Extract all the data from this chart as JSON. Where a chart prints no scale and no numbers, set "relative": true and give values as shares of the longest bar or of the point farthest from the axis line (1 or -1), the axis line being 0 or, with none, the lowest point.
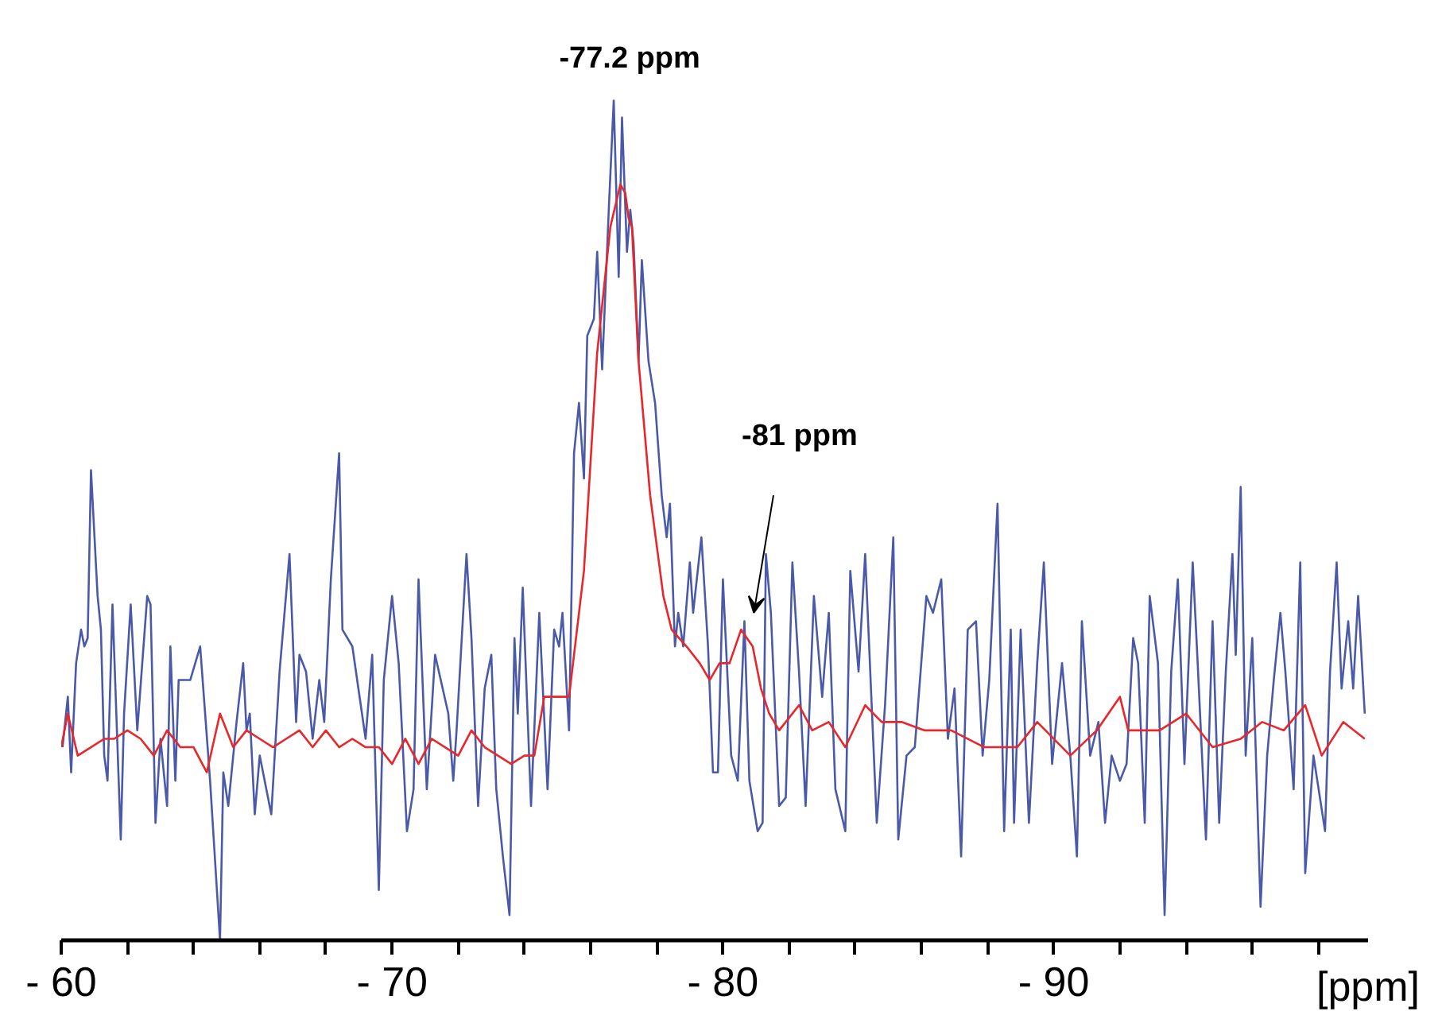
{
  "chart_data": {
    "type": "line",
    "relative": true,
    "xlabel": "[ppm]",
    "xlim": [
      -60,
      -99.5
    ],
    "xticks": [
      {
        "value": -60,
        "label": "- 60"
      },
      {
        "value": -62,
        "label": null
      },
      {
        "value": -64,
        "label": null
      },
      {
        "value": -66,
        "label": null
      },
      {
        "value": -68,
        "label": null
      },
      {
        "value": -70,
        "label": "- 70"
      },
      {
        "value": -72,
        "label": null
      },
      {
        "value": -74,
        "label": null
      },
      {
        "value": -76,
        "label": null
      },
      {
        "value": -78,
        "label": null
      },
      {
        "value": -80,
        "label": "- 80"
      },
      {
        "value": -82,
        "label": null
      },
      {
        "value": -84,
        "label": null
      },
      {
        "value": -86,
        "label": null
      },
      {
        "value": -88,
        "label": null
      },
      {
        "value": -90,
        "label": "- 90"
      },
      {
        "value": -92,
        "label": null
      },
      {
        "value": -94,
        "label": null
      },
      {
        "value": -96,
        "label": null
      },
      {
        "value": -98,
        "label": null
      }
    ],
    "tick_labels": "x",
    "grid": false,
    "marker": "none",
    "line_style": "solid",
    "annotations": [
      "-77.2 ppm",
      "-81 ppm"
    ],
    "series": [
      {
        "color": "#4a5aa8",
        "x": [
          -60.04,
          -60.2,
          -60.3,
          -60.45,
          -60.6,
          -60.7,
          -60.8,
          -60.9,
          -61.1,
          -61.2,
          -61.3,
          -61.4,
          -61.55,
          -61.8,
          -61.9,
          -62.1,
          -62.3,
          -62.6,
          -62.7,
          -62.85,
          -63.0,
          -63.2,
          -63.3,
          -63.45,
          -63.55,
          -63.9,
          -64.2,
          -64.5,
          -64.8,
          -64.9,
          -65.05,
          -65.3,
          -65.5,
          -65.6,
          -65.7,
          -65.85,
          -66.0,
          -66.35,
          -66.6,
          -66.9,
          -67.1,
          -67.2,
          -67.4,
          -67.6,
          -67.8,
          -67.95,
          -68.15,
          -68.4,
          -68.5,
          -68.8,
          -69.2,
          -69.4,
          -69.6,
          -69.75,
          -70.0,
          -70.2,
          -70.45,
          -70.65,
          -70.8,
          -71.05,
          -71.3,
          -71.7,
          -71.85,
          -71.95,
          -72.25,
          -72.4,
          -72.6,
          -72.8,
          -73.0,
          -73.15,
          -73.35,
          -73.55,
          -73.7,
          -73.8,
          -73.95,
          -74.2,
          -74.45,
          -74.7,
          -74.9,
          -75.05,
          -75.15,
          -75.35,
          -75.5,
          -75.65,
          -75.8,
          -75.9,
          -76.1,
          -76.2,
          -76.35,
          -76.55,
          -76.7,
          -76.85,
          -76.95,
          -77.1,
          -77.2,
          -77.3,
          -77.45,
          -77.55,
          -77.75,
          -77.95,
          -78.15,
          -78.3,
          -78.4,
          -78.55,
          -78.65,
          -78.8,
          -79.0,
          -79.1,
          -79.35,
          -79.55,
          -79.7,
          -79.85,
          -80.0,
          -80.25,
          -80.45,
          -80.65,
          -80.8,
          -81.05,
          -81.2,
          -81.3,
          -81.45,
          -81.7,
          -81.9,
          -82.1,
          -82.3,
          -82.5,
          -82.75,
          -83.0,
          -83.2,
          -83.4,
          -83.7,
          -83.85,
          -84.1,
          -84.3,
          -84.65,
          -84.9,
          -85.15,
          -85.3,
          -85.55,
          -85.8,
          -86.15,
          -86.35,
          -86.6,
          -86.8,
          -87.0,
          -87.2,
          -87.4,
          -87.65,
          -87.85,
          -88.05,
          -88.3,
          -88.5,
          -88.7,
          -88.8,
          -89.0,
          -89.25,
          -89.5,
          -89.7,
          -89.95,
          -90.25,
          -90.5,
          -90.7,
          -90.85,
          -91.1,
          -91.35,
          -91.55,
          -91.75,
          -92.0,
          -92.2,
          -92.4,
          -92.55,
          -92.75,
          -92.9,
          -93.15,
          -93.35,
          -93.55,
          -93.75,
          -93.95,
          -94.2,
          -94.35,
          -94.6,
          -94.8,
          -95.0,
          -95.2,
          -95.4,
          -95.5,
          -95.65,
          -95.8,
          -96.0,
          -96.25,
          -96.45,
          -96.65,
          -96.85,
          -97.0,
          -97.25,
          -97.45,
          -97.6,
          -97.85,
          -98.2,
          -98.35,
          -98.55,
          -98.7,
          -98.9,
          -99.05,
          -99.2,
          -99.4
        ],
        "values": [
          0.23,
          0.29,
          0.2,
          0.33,
          0.37,
          0.35,
          0.36,
          0.56,
          0.41,
          0.37,
          0.22,
          0.19,
          0.4,
          0.12,
          0.27,
          0.4,
          0.25,
          0.41,
          0.4,
          0.14,
          0.24,
          0.16,
          0.35,
          0.19,
          0.31,
          0.31,
          0.35,
          0.19,
          0.0,
          0.2,
          0.16,
          0.26,
          0.33,
          0.25,
          0.27,
          0.15,
          0.22,
          0.15,
          0.32,
          0.46,
          0.26,
          0.34,
          0.32,
          0.24,
          0.31,
          0.26,
          0.43,
          0.58,
          0.37,
          0.35,
          0.24,
          0.34,
          0.06,
          0.31,
          0.41,
          0.33,
          0.13,
          0.18,
          0.43,
          0.18,
          0.34,
          0.27,
          0.19,
          0.25,
          0.46,
          0.36,
          0.16,
          0.3,
          0.34,
          0.18,
          0.1,
          0.03,
          0.36,
          0.27,
          0.42,
          0.16,
          0.39,
          0.18,
          0.37,
          0.35,
          0.39,
          0.25,
          0.58,
          0.64,
          0.55,
          0.72,
          0.74,
          0.82,
          0.68,
          0.87,
          1.0,
          0.79,
          0.98,
          0.82,
          0.87,
          0.83,
          0.69,
          0.81,
          0.69,
          0.64,
          0.53,
          0.48,
          0.52,
          0.35,
          0.39,
          0.35,
          0.45,
          0.39,
          0.48,
          0.35,
          0.2,
          0.2,
          0.43,
          0.22,
          0.19,
          0.38,
          0.19,
          0.13,
          0.14,
          0.46,
          0.39,
          0.16,
          0.17,
          0.45,
          0.32,
          0.16,
          0.41,
          0.29,
          0.39,
          0.18,
          0.13,
          0.44,
          0.32,
          0.46,
          0.14,
          0.28,
          0.48,
          0.12,
          0.22,
          0.23,
          0.41,
          0.39,
          0.43,
          0.24,
          0.3,
          0.1,
          0.37,
          0.38,
          0.22,
          0.31,
          0.52,
          0.13,
          0.37,
          0.14,
          0.37,
          0.14,
          0.33,
          0.45,
          0.21,
          0.33,
          0.22,
          0.1,
          0.38,
          0.22,
          0.26,
          0.14,
          0.22,
          0.19,
          0.21,
          0.36,
          0.33,
          0.14,
          0.41,
          0.33,
          0.03,
          0.32,
          0.43,
          0.21,
          0.45,
          0.33,
          0.12,
          0.38,
          0.14,
          0.32,
          0.46,
          0.34,
          0.54,
          0.22,
          0.36,
          0.04,
          0.22,
          0.31,
          0.39,
          0.32,
          0.18,
          0.45,
          0.08,
          0.22,
          0.13,
          0.32,
          0.45,
          0.3,
          0.38,
          0.3,
          0.41,
          0.27
        ]
      },
      {
        "color": "#e8262b",
        "x": [
          -60.0,
          -60.2,
          -60.5,
          -60.9,
          -61.3,
          -61.6,
          -62.0,
          -62.4,
          -62.8,
          -63.2,
          -63.6,
          -64.0,
          -64.4,
          -64.8,
          -65.2,
          -65.6,
          -66.0,
          -66.4,
          -66.8,
          -67.2,
          -67.6,
          -68.0,
          -68.4,
          -68.8,
          -69.2,
          -69.6,
          -70.0,
          -70.4,
          -70.8,
          -71.2,
          -71.6,
          -72.0,
          -72.4,
          -72.8,
          -73.2,
          -73.6,
          -74.0,
          -74.3,
          -74.6,
          -75.35,
          -75.8,
          -76.2,
          -76.6,
          -76.9,
          -77.05,
          -77.15,
          -77.25,
          -77.45,
          -77.8,
          -78.2,
          -78.45,
          -78.9,
          -79.3,
          -79.6,
          -79.9,
          -80.2,
          -80.55,
          -80.9,
          -81.15,
          -81.4,
          -81.7,
          -82.3,
          -82.7,
          -83.2,
          -83.7,
          -84.3,
          -84.8,
          -85.4,
          -86.1,
          -86.9,
          -87.9,
          -88.9,
          -89.5,
          -90.5,
          -91.3,
          -92.0,
          -92.25,
          -93.2,
          -94.0,
          -94.8,
          -95.65,
          -96.3,
          -96.95,
          -97.6,
          -98.1,
          -98.75,
          -99.4
        ],
        "values": [
          0.23,
          0.27,
          0.22,
          0.23,
          0.24,
          0.24,
          0.25,
          0.24,
          0.22,
          0.25,
          0.23,
          0.23,
          0.2,
          0.27,
          0.23,
          0.25,
          0.24,
          0.23,
          0.24,
          0.25,
          0.23,
          0.25,
          0.23,
          0.24,
          0.23,
          0.23,
          0.21,
          0.24,
          0.21,
          0.24,
          0.23,
          0.22,
          0.25,
          0.23,
          0.22,
          0.21,
          0.22,
          0.22,
          0.29,
          0.29,
          0.44,
          0.7,
          0.85,
          0.9,
          0.89,
          0.86,
          0.85,
          0.69,
          0.53,
          0.41,
          0.37,
          0.35,
          0.33,
          0.31,
          0.33,
          0.33,
          0.37,
          0.35,
          0.3,
          0.27,
          0.25,
          0.28,
          0.25,
          0.26,
          0.23,
          0.28,
          0.26,
          0.26,
          0.25,
          0.25,
          0.23,
          0.23,
          0.26,
          0.22,
          0.25,
          0.29,
          0.25,
          0.25,
          0.27,
          0.23,
          0.24,
          0.26,
          0.25,
          0.28,
          0.22,
          0.26,
          0.24
        ]
      }
    ]
  }
}
